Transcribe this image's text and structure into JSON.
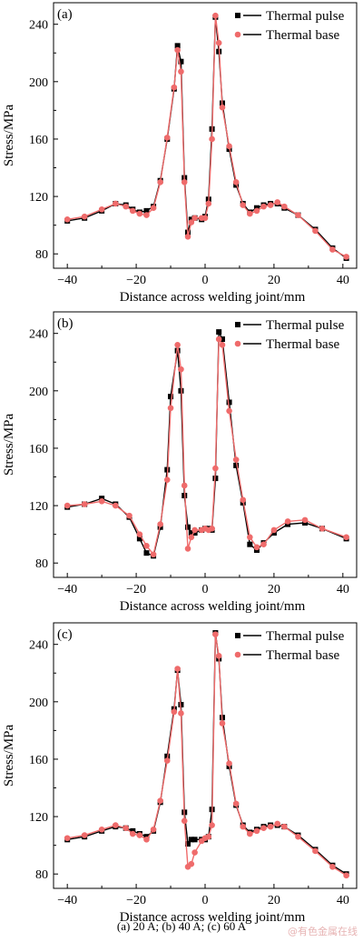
{
  "chart_data": [
    {
      "type": "line",
      "panel_label": "(a)",
      "xlabel": "Distance across welding joint/mm",
      "ylabel": "Stress/MPa",
      "xlim": [
        -44,
        44
      ],
      "ylim": [
        70,
        255
      ],
      "xticks": [
        -40,
        -20,
        0,
        20,
        40
      ],
      "yticks": [
        80,
        120,
        160,
        200,
        240
      ],
      "legend_position": "top-right",
      "series": [
        {
          "name": "Thermal pulse",
          "color": "#000000",
          "marker": "square",
          "x": [
            -40,
            -35,
            -30,
            -26,
            -23,
            -21,
            -19,
            -17,
            -15,
            -13,
            -11,
            -9,
            -8,
            -7,
            -6,
            -5,
            -4,
            -3,
            -1,
            0,
            1,
            2,
            3,
            4,
            5,
            7,
            9,
            11,
            13,
            15,
            17,
            19,
            21,
            23,
            27,
            32,
            37,
            41
          ],
          "y": [
            103,
            105,
            110,
            115,
            114,
            111,
            109,
            110,
            113,
            131,
            160,
            195,
            225,
            214,
            133,
            95,
            104,
            105,
            104,
            106,
            118,
            167,
            245,
            221,
            185,
            153,
            128,
            115,
            109,
            112,
            114,
            115,
            115,
            112,
            107,
            97,
            84,
            77
          ]
        },
        {
          "name": "Thermal base",
          "color": "#ef6b6b",
          "marker": "circle",
          "x": [
            -40,
            -35,
            -30,
            -26,
            -23,
            -21,
            -19,
            -17,
            -15,
            -13,
            -11,
            -9,
            -8,
            -7,
            -6,
            -5,
            -4,
            -3,
            -1,
            0,
            1,
            2,
            3,
            4,
            5,
            7,
            9,
            11,
            13,
            15,
            17,
            19,
            21,
            23,
            27,
            32,
            37,
            41
          ],
          "y": [
            104,
            106,
            111,
            115,
            113,
            110,
            108,
            107,
            112,
            130,
            161,
            196,
            222,
            207,
            130,
            92,
            102,
            105,
            105,
            105,
            115,
            160,
            246,
            227,
            182,
            155,
            130,
            114,
            108,
            110,
            113,
            114,
            116,
            113,
            107,
            96,
            83,
            78
          ]
        }
      ]
    },
    {
      "type": "line",
      "panel_label": "(b)",
      "xlabel": "Distance across welding joint/mm",
      "ylabel": "Stress/MPa",
      "xlim": [
        -44,
        44
      ],
      "ylim": [
        70,
        255
      ],
      "xticks": [
        -40,
        -20,
        0,
        20,
        40
      ],
      "yticks": [
        80,
        120,
        160,
        200,
        240
      ],
      "legend_position": "top-right",
      "series": [
        {
          "name": "Thermal pulse",
          "color": "#000000",
          "marker": "square",
          "x": [
            -40,
            -35,
            -30,
            -26,
            -22,
            -19,
            -17,
            -15,
            -13,
            -11,
            -10,
            -8,
            -7,
            -6,
            -5,
            -4,
            -3,
            -1,
            0,
            1,
            2,
            3,
            4,
            5,
            7,
            9,
            11,
            13,
            15,
            17,
            20,
            24,
            29,
            34,
            41
          ],
          "y": [
            119,
            121,
            125,
            121,
            112,
            97,
            87,
            85,
            105,
            145,
            196,
            228,
            200,
            127,
            105,
            101,
            101,
            103,
            104,
            104,
            103,
            139,
            241,
            236,
            192,
            148,
            122,
            93,
            89,
            94,
            101,
            107,
            108,
            104,
            97
          ]
        },
        {
          "name": "Thermal base",
          "color": "#ef6b6b",
          "marker": "circle",
          "x": [
            -40,
            -35,
            -30,
            -26,
            -22,
            -19,
            -17,
            -15,
            -13,
            -11,
            -10,
            -8,
            -7,
            -6,
            -5,
            -4,
            -3,
            -1,
            0,
            1,
            2,
            3,
            4,
            5,
            7,
            9,
            11,
            13,
            15,
            17,
            20,
            24,
            29,
            34,
            41
          ],
          "y": [
            120,
            121,
            123,
            120,
            113,
            100,
            92,
            86,
            107,
            138,
            188,
            232,
            215,
            134,
            90,
            98,
            103,
            103,
            104,
            103,
            104,
            146,
            236,
            232,
            186,
            152,
            124,
            98,
            91,
            93,
            103,
            109,
            110,
            104,
            98
          ]
        }
      ]
    },
    {
      "type": "line",
      "panel_label": "(c)",
      "xlabel": "Distance across welding joint/mm",
      "ylabel": "Stress/MPa",
      "xlim": [
        -44,
        44
      ],
      "ylim": [
        70,
        255
      ],
      "xticks": [
        -40,
        -20,
        0,
        20,
        40
      ],
      "yticks": [
        80,
        120,
        160,
        200,
        240
      ],
      "legend_position": "top-right",
      "series": [
        {
          "name": "Thermal pulse",
          "color": "#000000",
          "marker": "square",
          "x": [
            -40,
            -35,
            -30,
            -26,
            -23,
            -21,
            -19,
            -17,
            -15,
            -13,
            -11,
            -9,
            -8,
            -7,
            -6,
            -5,
            -4,
            -3,
            -1,
            0,
            1,
            2,
            3,
            4,
            5,
            7,
            9,
            11,
            13,
            15,
            17,
            19,
            21,
            23,
            27,
            32,
            37,
            41
          ],
          "y": [
            104,
            106,
            110,
            113,
            112,
            110,
            108,
            106,
            110,
            130,
            162,
            195,
            222,
            198,
            123,
            101,
            104,
            104,
            104,
            104,
            106,
            125,
            248,
            230,
            189,
            155,
            128,
            114,
            109,
            111,
            113,
            114,
            114,
            113,
            107,
            97,
            86,
            80
          ]
        },
        {
          "name": "Thermal base",
          "color": "#ef6b6b",
          "marker": "circle",
          "x": [
            -40,
            -35,
            -30,
            -26,
            -23,
            -21,
            -19,
            -17,
            -15,
            -13,
            -11,
            -9,
            -8,
            -7,
            -6,
            -5,
            -4,
            -3,
            -1,
            0,
            1,
            2,
            3,
            4,
            5,
            7,
            9,
            11,
            13,
            15,
            17,
            19,
            21,
            23,
            27,
            32,
            37,
            41
          ],
          "y": [
            105,
            107,
            111,
            114,
            112,
            108,
            107,
            104,
            111,
            131,
            159,
            193,
            223,
            192,
            117,
            85,
            87,
            95,
            103,
            105,
            106,
            114,
            247,
            232,
            185,
            157,
            129,
            113,
            108,
            110,
            112,
            113,
            115,
            113,
            106,
            96,
            85,
            79
          ]
        }
      ]
    }
  ],
  "caption": "(a) 20 A; (b) 40 A; (c) 60 A",
  "watermark": "@有色金属在线"
}
